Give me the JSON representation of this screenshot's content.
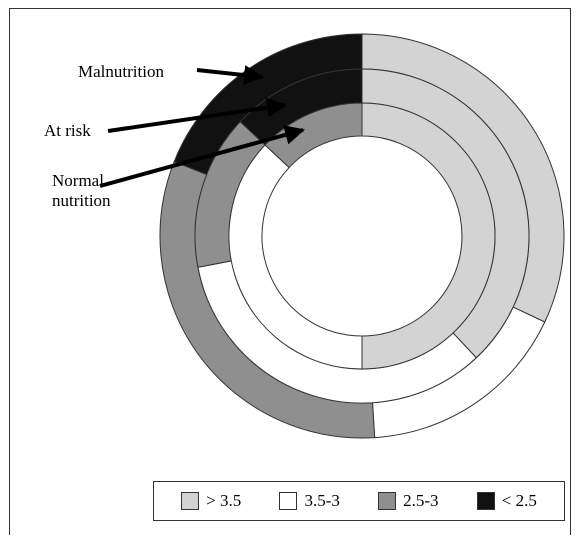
{
  "chart_data": {
    "type": "pie",
    "variant": "nested-donut",
    "title": "",
    "rings": [
      {
        "name": "Malnutrition",
        "slices": [
          {
            "category": "> 3.5",
            "value": 32
          },
          {
            "category": "3.5-3",
            "value": 17
          },
          {
            "category": "2.5-3",
            "value": 32
          },
          {
            "category": "< 2.5",
            "value": 19
          }
        ]
      },
      {
        "name": "At risk",
        "slices": [
          {
            "category": "> 3.5",
            "value": 38
          },
          {
            "category": "3.5-3",
            "value": 34
          },
          {
            "category": "2.5-3",
            "value": 15
          },
          {
            "category": "< 2.5",
            "value": 13
          }
        ]
      },
      {
        "name": "Normal nutrition",
        "slices": [
          {
            "category": "> 3.5",
            "value": 50
          },
          {
            "category": "3.5-3",
            "value": 37
          },
          {
            "category": "2.5-3",
            "value": 13
          }
        ]
      }
    ],
    "legend": [
      {
        "label": "> 3.5",
        "color": "#d3d3d3"
      },
      {
        "label": "3.5-3",
        "color": "#ffffff"
      },
      {
        "label": "2.5-3",
        "color": "#8f8f8f"
      },
      {
        "label": "< 2.5",
        "color": "#111111"
      }
    ],
    "legend_position": "bottom-right"
  }
}
